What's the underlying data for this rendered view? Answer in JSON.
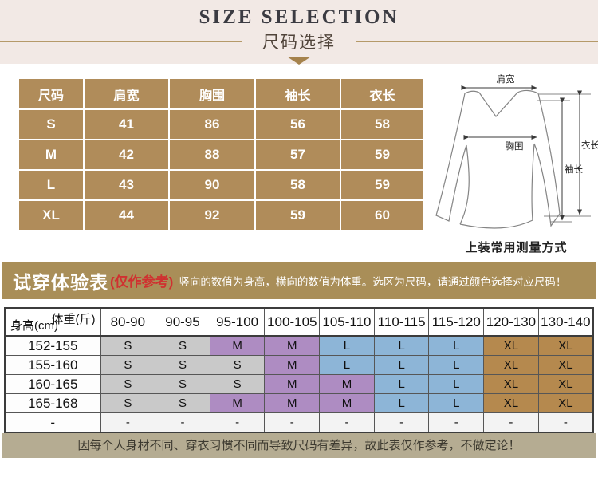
{
  "hero": {
    "title_en": "SIZE SELECTION",
    "title_zh": "尺码选择"
  },
  "size_table": {
    "headers": [
      "尺码",
      "肩宽",
      "胸围",
      "袖长",
      "衣长"
    ],
    "rows": [
      {
        "size": "S",
        "values": [
          "41",
          "86",
          "56",
          "58"
        ]
      },
      {
        "size": "M",
        "values": [
          "42",
          "88",
          "57",
          "59"
        ]
      },
      {
        "size": "L",
        "values": [
          "43",
          "90",
          "58",
          "59"
        ]
      },
      {
        "size": "XL",
        "values": [
          "44",
          "92",
          "59",
          "60"
        ]
      }
    ]
  },
  "diagram": {
    "labels": {
      "shoulder": "肩宽",
      "chest": "胸围",
      "garment_length": "衣长",
      "sleeve_length": "袖长"
    },
    "caption": "上装常用测量方式"
  },
  "fit_header": {
    "title": "试穿体验表",
    "subtitle_red": "(仅作参考)",
    "subtitle": "竖向的数值为身高，横向的数值为体重。选区为尺码，请通过颜色选择对应尺码！"
  },
  "fit_table": {
    "corner_top": "体重(斤)",
    "corner_bottom": "身高(cm)",
    "weight_cols": [
      "80-90",
      "90-95",
      "95-100",
      "100-105",
      "105-110",
      "110-115",
      "115-120",
      "120-130",
      "130-140"
    ],
    "rows": [
      {
        "height": "152-155",
        "cells": [
          {
            "label": "S",
            "size": "s"
          },
          {
            "label": "S",
            "size": "s"
          },
          {
            "label": "M",
            "size": "m"
          },
          {
            "label": "M",
            "size": "m"
          },
          {
            "label": "L",
            "size": "l"
          },
          {
            "label": "L",
            "size": "l"
          },
          {
            "label": "L",
            "size": "l"
          },
          {
            "label": "XL",
            "size": "xl"
          },
          {
            "label": "XL",
            "size": "xl"
          }
        ]
      },
      {
        "height": "155-160",
        "cells": [
          {
            "label": "S",
            "size": "s"
          },
          {
            "label": "S",
            "size": "s"
          },
          {
            "label": "S",
            "size": "s"
          },
          {
            "label": "M",
            "size": "m"
          },
          {
            "label": "L",
            "size": "l"
          },
          {
            "label": "L",
            "size": "l"
          },
          {
            "label": "L",
            "size": "l"
          },
          {
            "label": "XL",
            "size": "xl"
          },
          {
            "label": "XL",
            "size": "xl"
          }
        ]
      },
      {
        "height": "160-165",
        "cells": [
          {
            "label": "S",
            "size": "s"
          },
          {
            "label": "S",
            "size": "s"
          },
          {
            "label": "S",
            "size": "s"
          },
          {
            "label": "M",
            "size": "m"
          },
          {
            "label": "M",
            "size": "m"
          },
          {
            "label": "L",
            "size": "l"
          },
          {
            "label": "L",
            "size": "l"
          },
          {
            "label": "XL",
            "size": "xl"
          },
          {
            "label": "XL",
            "size": "xl"
          }
        ]
      },
      {
        "height": "165-168",
        "cells": [
          {
            "label": "S",
            "size": "s"
          },
          {
            "label": "S",
            "size": "s"
          },
          {
            "label": "M",
            "size": "m"
          },
          {
            "label": "M",
            "size": "m"
          },
          {
            "label": "M",
            "size": "m"
          },
          {
            "label": "L",
            "size": "l"
          },
          {
            "label": "L",
            "size": "l"
          },
          {
            "label": "XL",
            "size": "xl"
          },
          {
            "label": "XL",
            "size": "xl"
          }
        ]
      },
      {
        "height": "-",
        "cells": [
          {
            "label": "-",
            "size": "none"
          },
          {
            "label": "-",
            "size": "none"
          },
          {
            "label": "-",
            "size": "none"
          },
          {
            "label": "-",
            "size": "none"
          },
          {
            "label": "-",
            "size": "none"
          },
          {
            "label": "-",
            "size": "none"
          },
          {
            "label": "-",
            "size": "none"
          },
          {
            "label": "-",
            "size": "none"
          },
          {
            "label": "-",
            "size": "none"
          }
        ]
      }
    ]
  },
  "footer_note": "因每个人身材不同、穿衣习惯不同而导致尺码有差异，故此表仅作参考，不做定论！",
  "colors": {
    "accent_tan": "#b08c5a",
    "band_tan": "#a98e58",
    "cell_gray": "#c9c9c9",
    "cell_purple": "#ae8cc2",
    "cell_blue": "#8db5d7",
    "cell_tan": "#b5894e",
    "note_red": "#d03030",
    "footer_band": "#b5ac92"
  }
}
